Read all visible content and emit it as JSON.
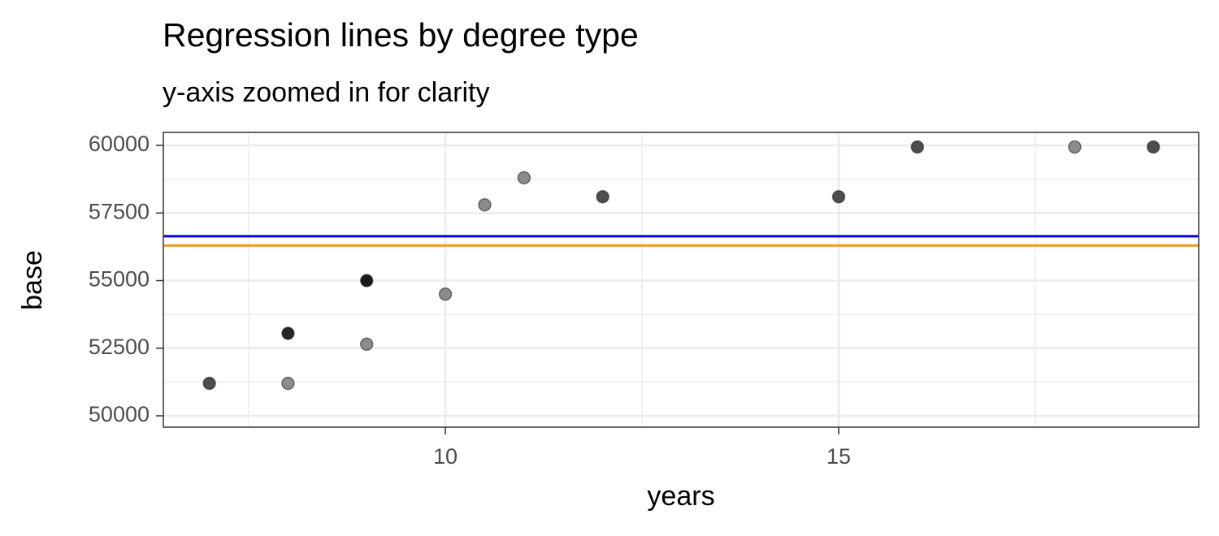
{
  "chart_data": {
    "type": "scatter",
    "title": "Regression lines by degree type",
    "subtitle": "y-axis zoomed in for clarity",
    "xlabel": "years",
    "ylabel": "base",
    "x": [
      7,
      8,
      8,
      9,
      9,
      10,
      10.5,
      11,
      12,
      15,
      16,
      18,
      19
    ],
    "y": [
      51200,
      53050,
      51200,
      55000,
      52650,
      54500,
      57800,
      58800,
      58100,
      58100,
      59940,
      59940,
      59940
    ],
    "colors": [
      "#4d4d4d",
      "#262626",
      "#8c8c8c",
      "#1a1a1a",
      "#8c8c8c",
      "#8c8c8c",
      "#8c8c8c",
      "#8c8c8c",
      "#4d4d4d",
      "#4d4d4d",
      "#4d4d4d",
      "#8c8c8c",
      "#4d4d4d"
    ],
    "hlines": [
      {
        "value": 56640,
        "color": "#0000ee"
      },
      {
        "value": 56300,
        "color": "#f39c1f"
      }
    ],
    "xlim": [
      6.415,
      19.576
    ],
    "ylim": [
      49580,
      60480
    ],
    "xticks": [
      10,
      15
    ],
    "yticks": [
      50000,
      52500,
      55000,
      57500,
      60000
    ],
    "xminor": [
      7.5,
      12.5,
      17.5
    ],
    "yminor": [
      51250,
      53750,
      56250,
      58750
    ],
    "grid": true
  }
}
